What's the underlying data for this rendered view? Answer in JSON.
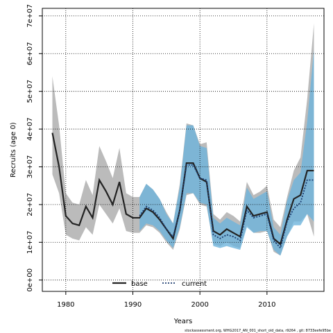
{
  "chart_data": {
    "type": "line",
    "title": "",
    "xlabel": "Years",
    "ylabel": "Recruits (age 0)",
    "xlim": [
      1976.5,
      2018.5
    ],
    "ylim": [
      -3000000,
      72000000
    ],
    "x_ticks": [
      1980,
      1990,
      2000,
      2010
    ],
    "x_tick_labels": [
      "1980",
      "1990",
      "2000",
      "2010"
    ],
    "y_ticks": [
      0,
      10000000,
      20000000,
      30000000,
      40000000,
      50000000,
      60000000,
      70000000
    ],
    "y_tick_labels": [
      "0e+00",
      "1e+07",
      "2e+07",
      "3e+07",
      "4e+07",
      "5e+07",
      "6e+07",
      "7e+07"
    ],
    "grid": true,
    "legend_position": "bottom",
    "footer": "stockassessment.org,  WHG2017_AN_001_short_old_data,  r9264 ,  git: 8733eefe95be",
    "series": [
      {
        "name": "base",
        "color": "#222222",
        "band_color": "#bbbbbb",
        "x": [
          1978,
          1979,
          1980,
          1981,
          1982,
          1983,
          1984,
          1985,
          1986,
          1987,
          1988,
          1989,
          1990,
          1991,
          1992,
          1993,
          1994,
          1995,
          1996,
          1997,
          1998,
          1999,
          2000,
          2001,
          2002,
          2003,
          2004,
          2005,
          2006,
          2007,
          2008,
          2009,
          2010,
          2011,
          2012,
          2013,
          2014,
          2015,
          2016,
          2017
        ],
        "values": [
          39000000,
          30000000,
          17000000,
          15000000,
          14500000,
          19500000,
          16500000,
          26500000,
          23500000,
          20000000,
          26000000,
          17500000,
          16500000,
          16500000,
          19000000,
          18000000,
          16000000,
          13500000,
          11000000,
          18500000,
          31000000,
          31000000,
          27000000,
          26000000,
          13000000,
          12000000,
          13500000,
          12500000,
          11500000,
          19500000,
          17000000,
          17500000,
          18000000,
          11000000,
          9500000,
          16000000,
          21500000,
          22500000,
          29000000,
          29000000
        ],
        "lower": [
          28000000,
          23000000,
          12000000,
          11000000,
          10500000,
          14000000,
          12000000,
          20000000,
          17500000,
          15000000,
          19000000,
          13000000,
          12500000,
          12500000,
          14500000,
          14000000,
          12500000,
          10000000,
          8000000,
          13500000,
          22500000,
          23000000,
          20000000,
          19500000,
          9500000,
          9000000,
          10000000,
          9000000,
          8500000,
          14500000,
          12500000,
          12500000,
          13000000,
          7500000,
          6500000,
          11500000,
          15500000,
          15500000,
          17500000,
          11500000
        ],
        "upper": [
          54000000,
          41000000,
          23000000,
          20500000,
          20000000,
          26500000,
          22500000,
          35500000,
          31500000,
          27000000,
          35000000,
          23000000,
          22000000,
          22000000,
          25500000,
          24000000,
          21500000,
          18000000,
          15000000,
          25500000,
          41500000,
          41000000,
          36000000,
          36500000,
          17500000,
          16000000,
          18000000,
          17000000,
          15500000,
          26000000,
          22500000,
          23500000,
          25000000,
          16000000,
          14000000,
          22000000,
          29000000,
          32500000,
          48000000,
          68000000
        ]
      },
      {
        "name": "current",
        "color": "#1a3a6e",
        "band_color": "#6eb4dc",
        "x": [
          1991,
          1992,
          1993,
          1994,
          1995,
          1996,
          1997,
          1998,
          1999,
          2000,
          2001,
          2002,
          2003,
          2004,
          2005,
          2006,
          2007,
          2008,
          2009,
          2010,
          2011,
          2012,
          2013,
          2014,
          2015,
          2016,
          2017
        ],
        "values": [
          17000000,
          19500000,
          18500000,
          16500000,
          13500000,
          11500000,
          18500000,
          30500000,
          30500000,
          27000000,
          26500000,
          12000000,
          11000000,
          12000000,
          11500000,
          10500000,
          18500000,
          16500000,
          17000000,
          17500000,
          10500000,
          8500000,
          15500000,
          19000000,
          20500000,
          26500000,
          26500000
        ],
        "lower": [
          13000000,
          15000000,
          14500000,
          13000000,
          10500000,
          8500000,
          14000000,
          23000000,
          23000000,
          20500000,
          20000000,
          9000000,
          8500000,
          9000000,
          8500000,
          8000000,
          14000000,
          12500000,
          13000000,
          13000000,
          8000000,
          6500000,
          11500000,
          14500000,
          14500000,
          17500000,
          15500000
        ],
        "upper": [
          22000000,
          25500000,
          24000000,
          21500000,
          17500000,
          15000000,
          24500000,
          41000000,
          41000000,
          35500000,
          35000000,
          16500000,
          15000000,
          16500000,
          15500000,
          14500000,
          24500000,
          21500000,
          22500000,
          23500000,
          14000000,
          12000000,
          21000000,
          26500000,
          28500000,
          42000000,
          61000000
        ]
      }
    ]
  }
}
